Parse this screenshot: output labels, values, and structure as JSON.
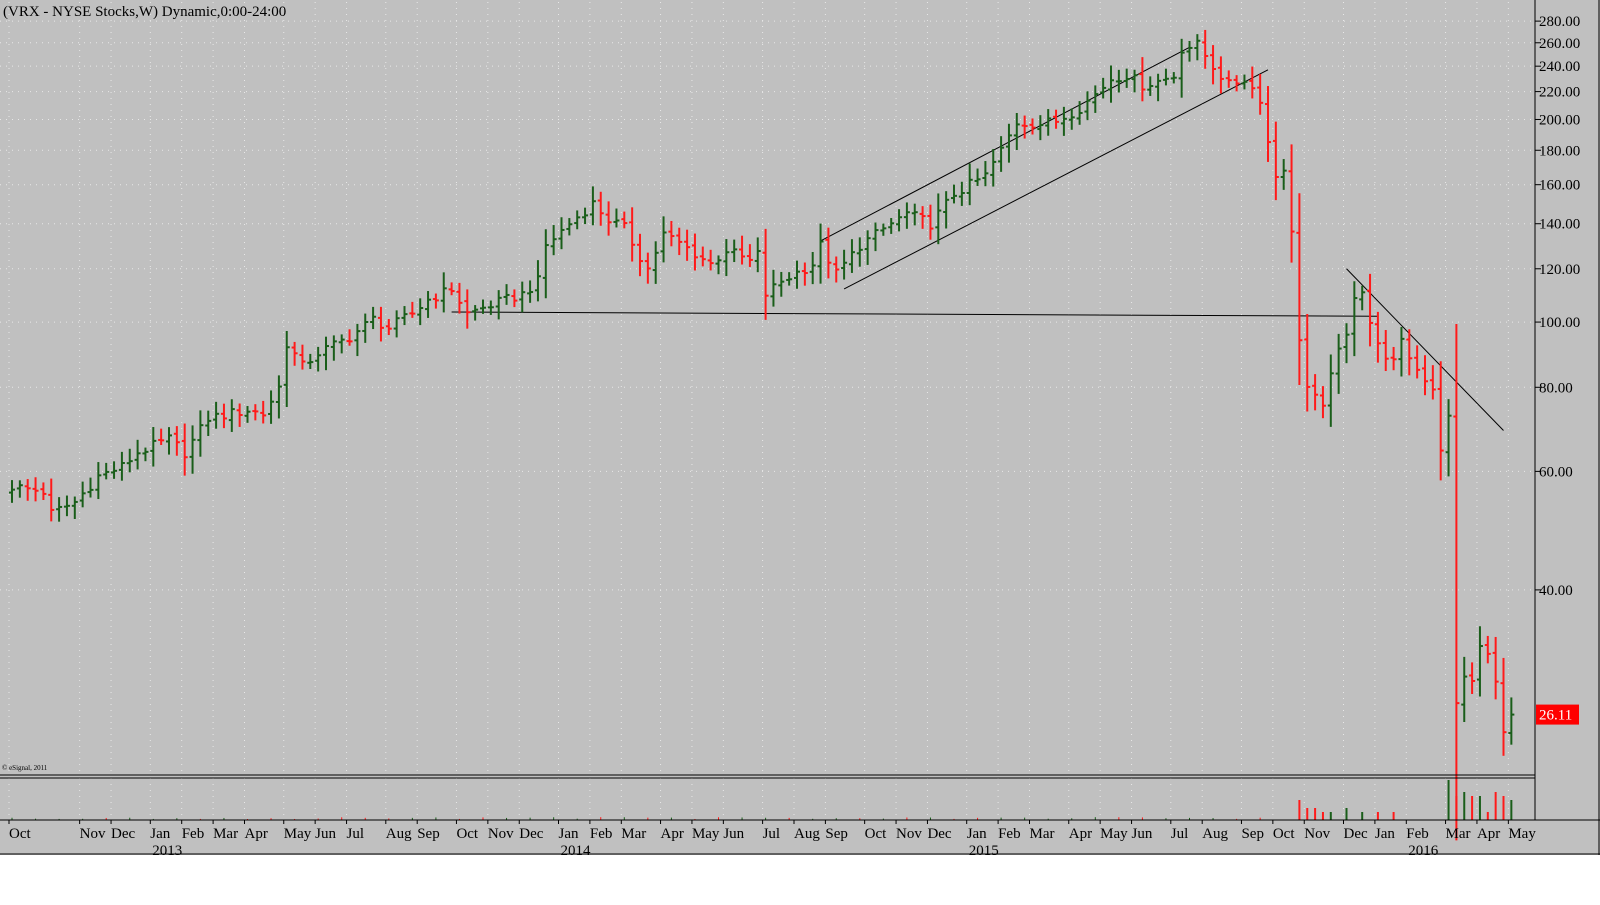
{
  "header": {
    "title": "(VRX - NYSE Stocks,W) Dynamic,0:00-24:00",
    "copyright": "© eSignal, 2011"
  },
  "colors": {
    "background": "#c0c0c0",
    "up_bar": "#1a5e1a",
    "down_bar": "#ff1a1a",
    "grid": "#e8e8e8",
    "trendline": "#000000",
    "last_price_bg": "#ff0000"
  },
  "chart_data": {
    "type": "ohlc",
    "scale": "log",
    "ylim": [
      20,
      290
    ],
    "grid": true,
    "ticks": [
      "280.00",
      "260.00",
      "240.00",
      "220.00",
      "200.00",
      "180.00",
      "160.00",
      "140.00",
      "120.00",
      "100.00",
      "80.00",
      "60.00",
      "40.00"
    ],
    "tick_values": [
      280,
      260,
      240,
      220,
      200,
      180,
      160,
      140,
      120,
      100,
      80,
      60,
      40
    ],
    "last_price": "26.11",
    "last_price_value": 26.11,
    "months": [
      {
        "label": "Oct",
        "week": 0
      },
      {
        "label": "Nov",
        "week": 9
      },
      {
        "label": "Dec",
        "week": 13
      },
      {
        "label": "Jan",
        "week": 18,
        "year": "2013"
      },
      {
        "label": "Feb",
        "week": 22
      },
      {
        "label": "Mar",
        "week": 26
      },
      {
        "label": "Apr",
        "week": 30
      },
      {
        "label": "May",
        "week": 35
      },
      {
        "label": "Jun",
        "week": 39
      },
      {
        "label": "Jul",
        "week": 43
      },
      {
        "label": "Aug",
        "week": 48
      },
      {
        "label": "Sep",
        "week": 52
      },
      {
        "label": "Oct",
        "week": 57
      },
      {
        "label": "Nov",
        "week": 61
      },
      {
        "label": "Dec",
        "week": 65
      },
      {
        "label": "Jan",
        "week": 70,
        "year": "2014"
      },
      {
        "label": "Feb",
        "week": 74
      },
      {
        "label": "Mar",
        "week": 78
      },
      {
        "label": "Apr",
        "week": 83
      },
      {
        "label": "May",
        "week": 87
      },
      {
        "label": "Jun",
        "week": 91
      },
      {
        "label": "Jul",
        "week": 96
      },
      {
        "label": "Aug",
        "week": 100
      },
      {
        "label": "Sep",
        "week": 104
      },
      {
        "label": "Oct",
        "week": 109
      },
      {
        "label": "Nov",
        "week": 113
      },
      {
        "label": "Dec",
        "week": 117
      },
      {
        "label": "Jan",
        "week": 122,
        "year": "2015"
      },
      {
        "label": "Feb",
        "week": 126
      },
      {
        "label": "Mar",
        "week": 130
      },
      {
        "label": "Apr",
        "week": 135
      },
      {
        "label": "May",
        "week": 139
      },
      {
        "label": "Jun",
        "week": 143
      },
      {
        "label": "Jul",
        "week": 148
      },
      {
        "label": "Aug",
        "week": 152
      },
      {
        "label": "Sep",
        "week": 157
      },
      {
        "label": "Oct",
        "week": 161
      },
      {
        "label": "Nov",
        "week": 165
      },
      {
        "label": "Dec",
        "week": 170
      },
      {
        "label": "Jan",
        "week": 174
      },
      {
        "label": "Feb",
        "week": 178,
        "year": "2016"
      },
      {
        "label": "Mar",
        "week": 183
      },
      {
        "label": "Apr",
        "week": 187
      },
      {
        "label": "May",
        "week": 191
      }
    ],
    "anchors": [
      [
        0,
        57
      ],
      [
        4,
        56
      ],
      [
        5,
        52
      ],
      [
        8,
        54
      ],
      [
        11,
        59
      ],
      [
        14,
        61
      ],
      [
        16,
        64
      ],
      [
        20,
        67
      ],
      [
        22,
        64
      ],
      [
        25,
        72
      ],
      [
        30,
        74
      ],
      [
        32,
        73
      ],
      [
        34,
        80
      ],
      [
        35,
        93
      ],
      [
        37,
        86
      ],
      [
        39,
        90
      ],
      [
        43,
        95
      ],
      [
        46,
        101
      ],
      [
        48,
        98
      ],
      [
        51,
        103
      ],
      [
        53,
        108
      ],
      [
        56,
        112
      ],
      [
        58,
        103
      ],
      [
        61,
        106
      ],
      [
        63,
        108
      ],
      [
        65,
        110
      ],
      [
        67,
        115
      ],
      [
        68,
        130
      ],
      [
        71,
        140
      ],
      [
        74,
        150
      ],
      [
        76,
        142
      ],
      [
        78,
        138
      ],
      [
        80,
        125
      ],
      [
        81,
        120
      ],
      [
        83,
        135
      ],
      [
        85,
        131
      ],
      [
        89,
        122
      ],
      [
        91,
        128
      ],
      [
        94,
        123
      ],
      [
        95,
        126
      ],
      [
        96,
        110
      ],
      [
        98,
        115
      ],
      [
        102,
        122
      ],
      [
        103,
        130
      ],
      [
        105,
        118
      ],
      [
        108,
        130
      ],
      [
        112,
        140
      ],
      [
        114,
        145
      ],
      [
        117,
        140
      ],
      [
        120,
        155
      ],
      [
        124,
        165
      ],
      [
        126,
        180
      ],
      [
        128,
        198
      ],
      [
        131,
        197
      ],
      [
        133,
        199
      ],
      [
        136,
        208
      ],
      [
        138,
        218
      ],
      [
        140,
        230
      ],
      [
        142,
        233
      ],
      [
        144,
        225
      ],
      [
        146,
        228
      ],
      [
        148,
        232
      ],
      [
        149,
        255
      ],
      [
        151,
        258
      ],
      [
        153,
        240
      ],
      [
        155,
        225
      ],
      [
        157,
        230
      ],
      [
        159,
        215
      ],
      [
        160,
        185
      ],
      [
        161,
        165
      ],
      [
        162,
        170
      ],
      [
        163,
        135
      ],
      [
        164,
        95
      ],
      [
        165,
        80
      ],
      [
        167,
        74
      ],
      [
        168,
        85
      ],
      [
        170,
        95
      ],
      [
        171,
        110
      ],
      [
        172,
        112
      ],
      [
        173,
        100
      ],
      [
        174,
        92
      ],
      [
        176,
        87
      ],
      [
        177,
        93
      ],
      [
        179,
        85
      ],
      [
        181,
        80
      ],
      [
        182,
        65
      ],
      [
        183,
        72
      ],
      [
        184,
        27
      ],
      [
        185,
        30
      ],
      [
        186,
        29
      ],
      [
        187,
        33
      ],
      [
        188,
        32
      ],
      [
        189,
        29
      ],
      [
        190,
        25
      ],
      [
        191,
        26.11
      ]
    ],
    "volume_spikes": [
      [
        164,
        5
      ],
      [
        165,
        3
      ],
      [
        166,
        3
      ],
      [
        167,
        2
      ],
      [
        168,
        2
      ],
      [
        170,
        3
      ],
      [
        172,
        2
      ],
      [
        174,
        2
      ],
      [
        176,
        2
      ],
      [
        183,
        10
      ],
      [
        184,
        6
      ],
      [
        185,
        7
      ],
      [
        186,
        6
      ],
      [
        187,
        6
      ],
      [
        188,
        2
      ],
      [
        189,
        7
      ],
      [
        190,
        6
      ],
      [
        191,
        5
      ]
    ],
    "trendlines": [
      {
        "from": [
          56,
          103.5
        ],
        "to": [
          174,
          102
        ]
      },
      {
        "from": [
          103,
          132
        ],
        "to": [
          150,
          256
        ]
      },
      {
        "from": [
          106,
          112
        ],
        "to": [
          160,
          237
        ]
      },
      {
        "from": [
          170,
          120
        ],
        "to": [
          190,
          69
        ]
      }
    ]
  }
}
